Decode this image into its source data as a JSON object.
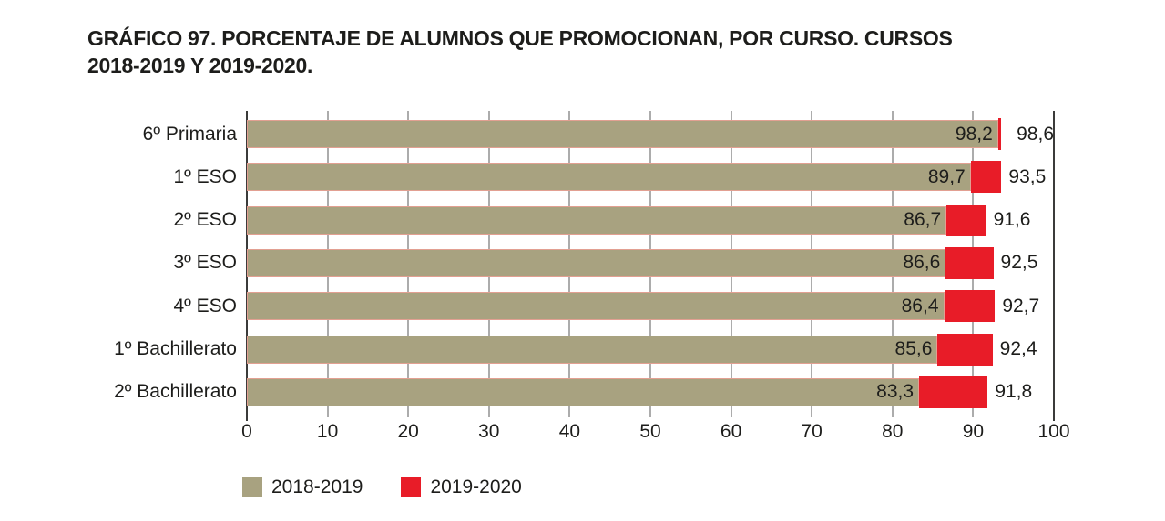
{
  "title": "GRÁFICO 97. PORCENTAJE DE ALUMNOS QUE PROMOCIONAN, POR CURSO. CURSOS 2018-2019 Y 2019-2020.",
  "chart_data": {
    "type": "bar",
    "orientation": "horizontal",
    "title": "GRÁFICO 97. PORCENTAJE DE ALUMNOS QUE PROMOCIONAN, POR CURSO. CURSOS 2018-2019 Y 2019-2020.",
    "categories": [
      "6º Primaria",
      "1º ESO",
      "2º ESO",
      "3º ESO",
      "4º ESO",
      "1º Bachillerato",
      "2º Bachillerato"
    ],
    "series": [
      {
        "name": "2018-2019",
        "color": "#a8a280",
        "values": [
          98.2,
          89.7,
          86.7,
          86.6,
          86.4,
          85.6,
          83.3
        ],
        "labels": [
          "98,2",
          "89,7",
          "86,7",
          "86,6",
          "86,4",
          "85,6",
          "83,3"
        ]
      },
      {
        "name": "2019-2020",
        "color": "#e81c28",
        "values": [
          98.6,
          93.5,
          91.6,
          92.5,
          92.7,
          92.4,
          91.8
        ],
        "labels": [
          "98,6",
          "93,5",
          "91,6",
          "92,5",
          "92,7",
          "92,4",
          "91,8"
        ]
      }
    ],
    "xlim": [
      0,
      100
    ],
    "x_ticks": [
      0,
      10,
      20,
      30,
      40,
      50,
      60,
      70,
      80,
      90,
      100
    ],
    "grid": "vertical",
    "legend_position": "bottom",
    "bar_display": "second series drawn as red extension from first-series value to second-series value",
    "colors": {
      "grid_line": "#5a5a5a",
      "axis_line": "#3b3b3a",
      "bar_border": "#e2a092",
      "text": "#1d1d1b",
      "background": "#ffffff"
    }
  },
  "legend": {
    "items": [
      {
        "label": "2018-2019",
        "color": "#a8a280"
      },
      {
        "label": "2019-2020",
        "color": "#e81c28"
      }
    ]
  }
}
